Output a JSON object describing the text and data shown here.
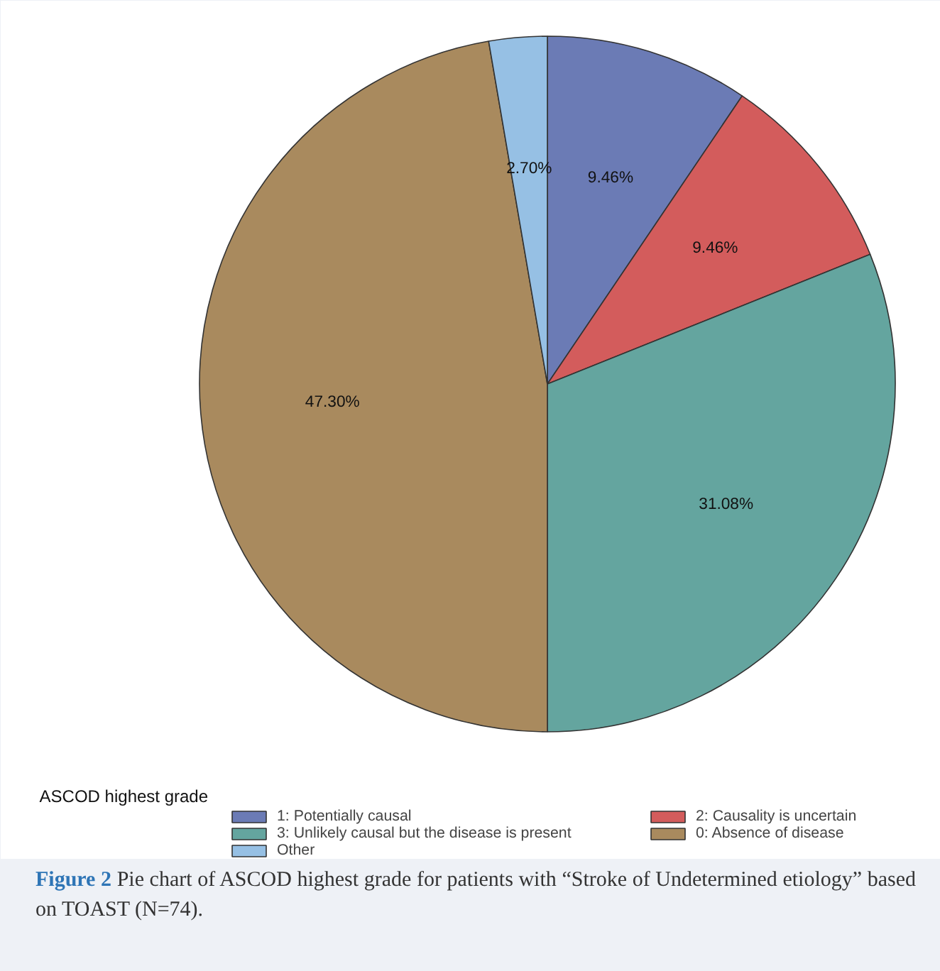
{
  "chart_data": {
    "type": "pie",
    "legend_title": "ASCOD highest grade",
    "legend": "bottom",
    "categories": [
      "1: Potentially causal",
      "2: Causality is uncertain",
      "3: Unlikely causal but the disease is present",
      "0: Absence of disease",
      "Other"
    ],
    "values": [
      9.46,
      9.46,
      31.08,
      47.3,
      2.7
    ],
    "colors": [
      "#6b7bb5",
      "#d35c5c",
      "#64a59f",
      "#a98a5e",
      "#96c0e4"
    ],
    "value_labels": [
      "9.46%",
      "9.46%",
      "31.08%",
      "47.30%",
      "2.70%"
    ],
    "annotations": [
      "Figure 2 Pie chart of ASCOD highest grade for patients with “Stroke of Undetermined etiology” based on TOAST (N=74)."
    ]
  }
}
